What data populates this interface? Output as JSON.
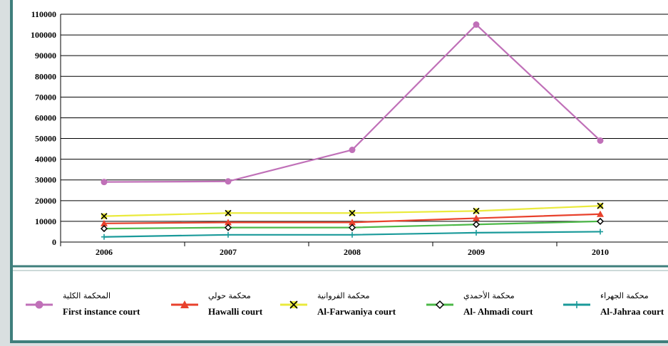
{
  "chart_data": {
    "type": "line",
    "categories": [
      "2006",
      "2007",
      "2008",
      "2009",
      "2010"
    ],
    "ylim": [
      0,
      110000
    ],
    "yticks": [
      0,
      10000,
      20000,
      30000,
      40000,
      50000,
      60000,
      70000,
      80000,
      90000,
      100000,
      110000
    ],
    "ytick_labels": [
      "0",
      "10000",
      "20000",
      "30000",
      "40000",
      "50000",
      "60000",
      "70000",
      "80000",
      "90000",
      "100000",
      "110000"
    ],
    "grid": "horizontal",
    "legend_position": "bottom",
    "series": [
      {
        "name_ar": "المحكمة الكلية",
        "name": "First instance court",
        "color": "#c070b8",
        "marker": "circle",
        "values": [
          29000,
          29300,
          44500,
          105000,
          49000
        ]
      },
      {
        "name_ar": "محكمة حولي",
        "name": "Hawalli court",
        "color": "#e8412c",
        "marker": "triangle",
        "values": [
          9000,
          9500,
          9500,
          11500,
          13500
        ]
      },
      {
        "name_ar": "محكمة الفروانية",
        "name": "Al-Farwaniya court",
        "color": "#eaea3c",
        "marker": "x",
        "values": [
          12500,
          14000,
          14000,
          15000,
          17500
        ]
      },
      {
        "name_ar": "محكمة الأحمدي",
        "name": "Al- Ahmadi court",
        "color": "#4cb848",
        "marker": "diamond",
        "values": [
          6500,
          7000,
          7000,
          8500,
          10000
        ]
      },
      {
        "name_ar": "محكمة الجهراء",
        "name": "Al-Jahraa court",
        "color": "#1a9a9a",
        "marker": "plus",
        "values": [
          2500,
          3500,
          3500,
          4500,
          5000
        ]
      }
    ]
  }
}
